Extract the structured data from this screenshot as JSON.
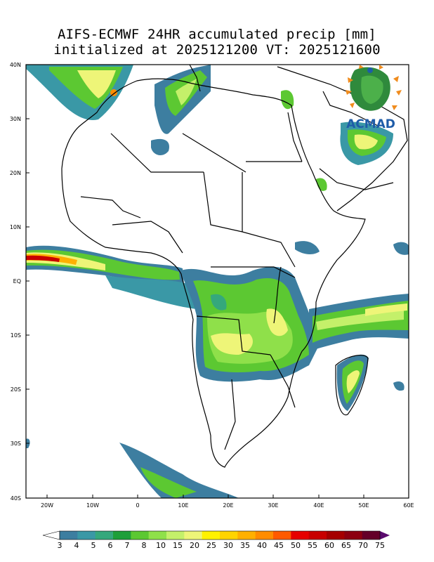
{
  "title_line1": "AIFS-ECMWF 24HR accumulated precip [mm]",
  "title_line2": "initialized at 2025121200 VT: 2025121600",
  "logo_text": "ACMAD",
  "lat_labels": [
    "40N",
    "30N",
    "20N",
    "10N",
    "EQ",
    "10S",
    "20S",
    "30S",
    "40S"
  ],
  "lon_labels": [
    "20W",
    "10W",
    "0",
    "10E",
    "20E",
    "30E",
    "40E",
    "50E",
    "60E"
  ],
  "colorbar": {
    "labels": [
      "3",
      "4",
      "5",
      "6",
      "7",
      "8",
      "10",
      "15",
      "20",
      "25",
      "30",
      "35",
      "40",
      "45",
      "50",
      "55",
      "60",
      "65",
      "70",
      "75"
    ],
    "colors": [
      "#ffffff",
      "#3d7ea0",
      "#3a98a6",
      "#35a87c",
      "#1e9f3a",
      "#5cc832",
      "#8fe04a",
      "#c4f06a",
      "#eef578",
      "#fff200",
      "#ffd400",
      "#ffb000",
      "#ff8c00",
      "#ff5a00",
      "#e60000",
      "#c80000",
      "#a50000",
      "#8c0010",
      "#640028",
      "#5a0a6e"
    ]
  },
  "map_extent": {
    "lon": [
      -25,
      60
    ],
    "lat": [
      -40,
      40
    ]
  }
}
